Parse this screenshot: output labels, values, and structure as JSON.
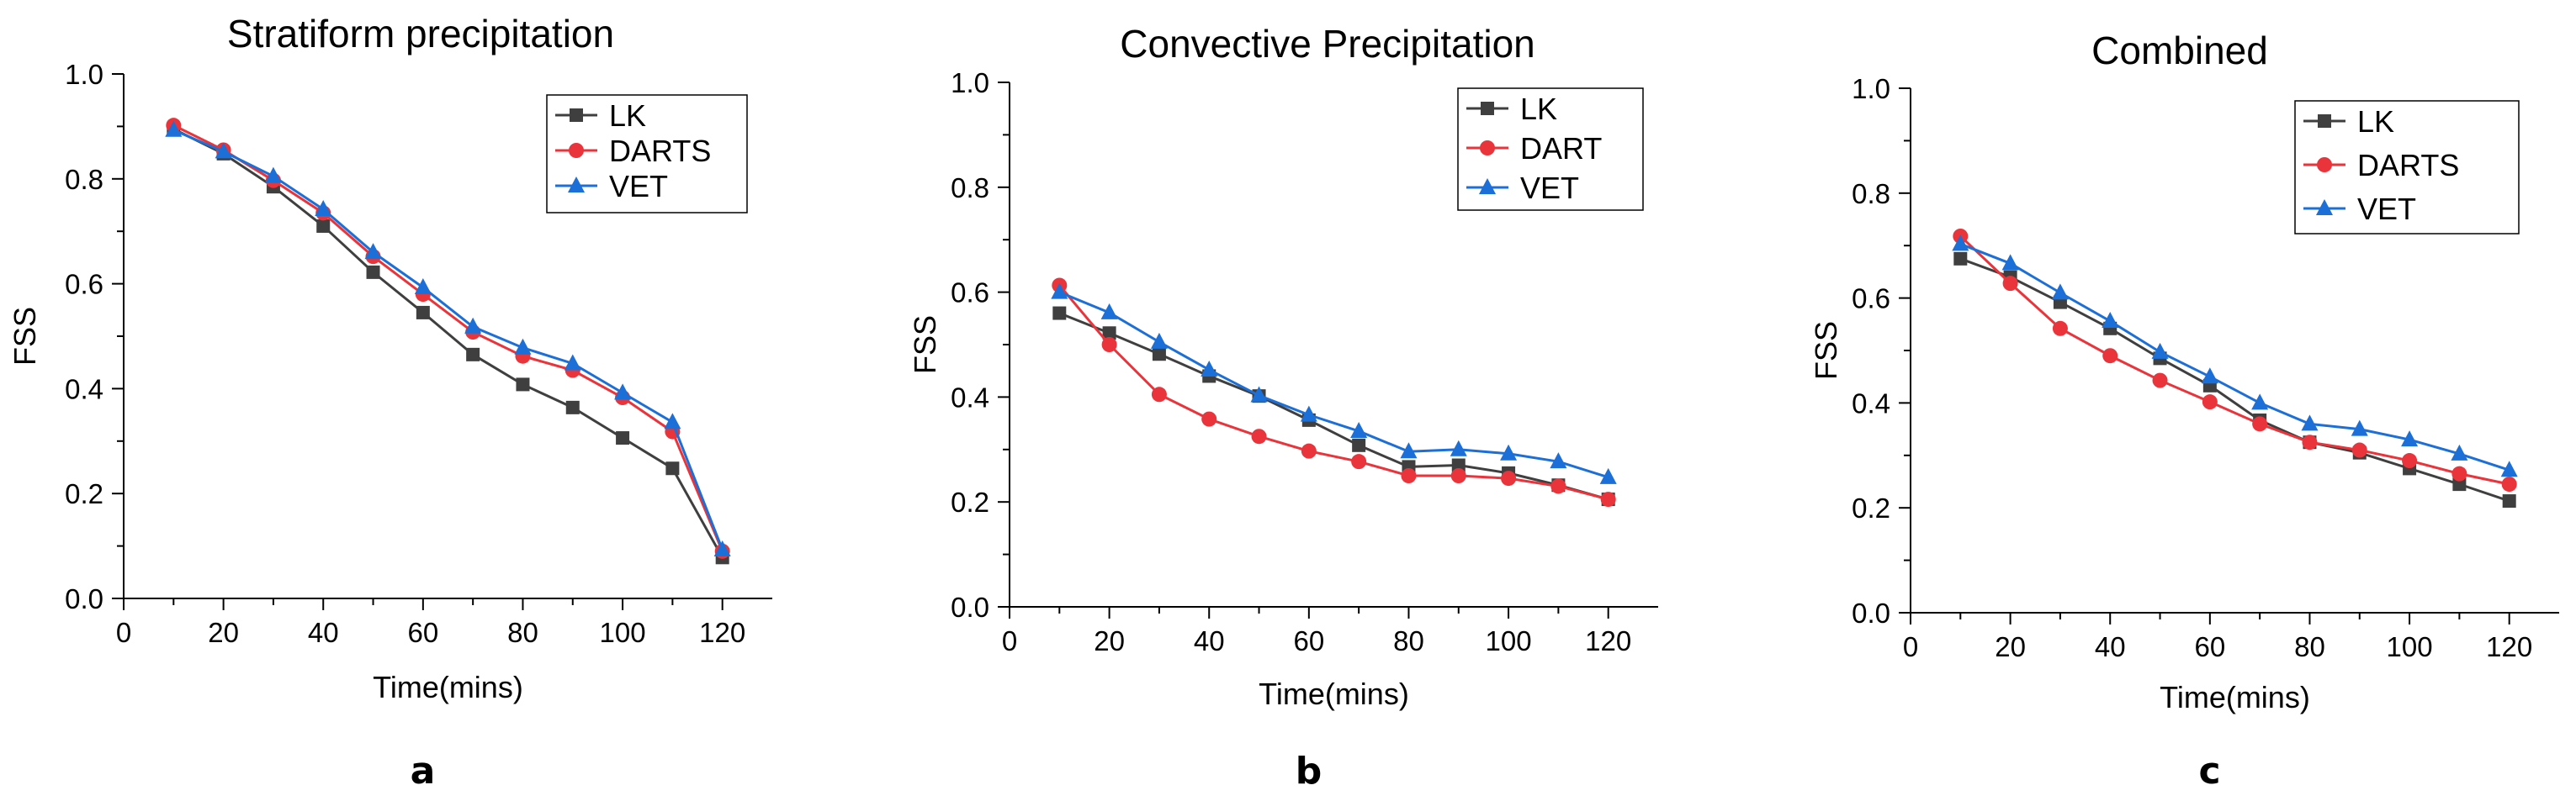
{
  "chart_data": [
    {
      "type": "line",
      "panel_label": "a",
      "title": "Stratiform precipitation",
      "xlabel": "Time(mins)",
      "ylabel": "FSS",
      "xlim": [
        0,
        130
      ],
      "ylim": [
        0,
        1.0
      ],
      "xticks": [
        "0",
        "20",
        "40",
        "60",
        "80",
        "100",
        "120"
      ],
      "yticks": [
        "0.0",
        "0.2",
        "0.4",
        "0.6",
        "0.8",
        "1.0"
      ],
      "x": [
        10,
        20,
        30,
        40,
        50,
        60,
        70,
        80,
        90,
        100,
        110,
        120
      ],
      "legend_position": "top-right",
      "series": [
        {
          "name": "LK",
          "color": "#3f3f3f",
          "marker": "square",
          "values": [
            0.895,
            0.848,
            0.785,
            0.71,
            0.622,
            0.545,
            0.465,
            0.408,
            0.364,
            0.306,
            0.248,
            0.078
          ]
        },
        {
          "name": "DARTS",
          "color": "#e8343a",
          "marker": "circle",
          "values": [
            0.902,
            0.855,
            0.797,
            0.735,
            0.652,
            0.58,
            0.508,
            0.462,
            0.435,
            0.383,
            0.318,
            0.09
          ]
        },
        {
          "name": "VET",
          "color": "#1c6fd6",
          "marker": "triangle",
          "values": [
            0.893,
            0.852,
            0.805,
            0.742,
            0.66,
            0.593,
            0.518,
            0.478,
            0.448,
            0.392,
            0.336,
            0.093
          ]
        }
      ]
    },
    {
      "type": "line",
      "panel_label": "b",
      "title": "Convective Precipitation",
      "xlabel": "Time(mins)",
      "ylabel": "FSS",
      "xlim": [
        0,
        130
      ],
      "ylim": [
        0,
        1.0
      ],
      "xticks": [
        "0",
        "20",
        "40",
        "60",
        "80",
        "100",
        "120"
      ],
      "yticks": [
        "0.0",
        "0.2",
        "0.4",
        "0.6",
        "0.8",
        "1.0"
      ],
      "x": [
        10,
        20,
        30,
        40,
        50,
        60,
        70,
        80,
        90,
        100,
        110,
        120
      ],
      "legend_position": "top-right",
      "series": [
        {
          "name": "LK",
          "color": "#3f3f3f",
          "marker": "square",
          "values": [
            0.56,
            0.522,
            0.482,
            0.44,
            0.402,
            0.356,
            0.308,
            0.267,
            0.27,
            0.255,
            0.232,
            0.205
          ]
        },
        {
          "name": "DART",
          "color": "#e8343a",
          "marker": "circle",
          "values": [
            0.613,
            0.5,
            0.405,
            0.358,
            0.325,
            0.297,
            0.277,
            0.25,
            0.25,
            0.245,
            0.23,
            0.205
          ]
        },
        {
          "name": "VET",
          "color": "#1c6fd6",
          "marker": "triangle",
          "values": [
            0.6,
            0.561,
            0.505,
            0.452,
            0.403,
            0.366,
            0.335,
            0.296,
            0.3,
            0.292,
            0.277,
            0.247
          ]
        }
      ]
    },
    {
      "type": "line",
      "panel_label": "c",
      "title": "Combined",
      "xlabel": "Time(mins)",
      "ylabel": "FSS",
      "xlim": [
        0,
        130
      ],
      "ylim": [
        0,
        1.0
      ],
      "xticks": [
        "0",
        "20",
        "40",
        "60",
        "80",
        "100",
        "120"
      ],
      "yticks": [
        "0.0",
        "0.2",
        "0.4",
        "0.6",
        "0.8",
        "1.0"
      ],
      "x": [
        10,
        20,
        30,
        40,
        50,
        60,
        70,
        80,
        90,
        100,
        110,
        120
      ],
      "legend_position": "top-right",
      "series": [
        {
          "name": "LK",
          "color": "#3f3f3f",
          "marker": "square",
          "values": [
            0.675,
            0.64,
            0.592,
            0.542,
            0.485,
            0.433,
            0.367,
            0.325,
            0.305,
            0.275,
            0.245,
            0.213
          ]
        },
        {
          "name": "DARTS",
          "color": "#e8343a",
          "marker": "circle",
          "values": [
            0.718,
            0.628,
            0.542,
            0.49,
            0.443,
            0.402,
            0.36,
            0.325,
            0.31,
            0.29,
            0.265,
            0.245
          ]
        },
        {
          "name": "VET",
          "color": "#1c6fd6",
          "marker": "triangle",
          "values": [
            0.703,
            0.666,
            0.61,
            0.556,
            0.497,
            0.45,
            0.4,
            0.36,
            0.35,
            0.33,
            0.303,
            0.272
          ]
        }
      ]
    }
  ]
}
